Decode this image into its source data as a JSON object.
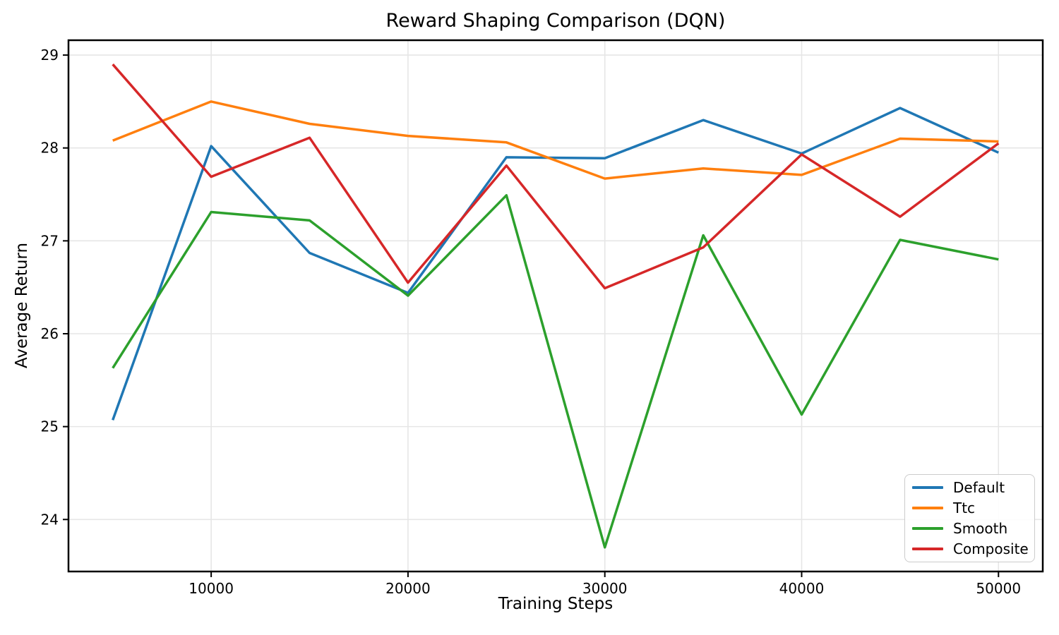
{
  "chart_data": {
    "type": "line",
    "title": "Reward Shaping Comparison (DQN)",
    "xlabel": "Training Steps",
    "ylabel": "Average Return",
    "x": [
      5000,
      10000,
      15000,
      20000,
      25000,
      30000,
      35000,
      40000,
      45000,
      50000
    ],
    "series": [
      {
        "name": "Default",
        "color": "#1f77b4",
        "values": [
          25.07,
          28.02,
          26.87,
          26.44,
          27.9,
          27.89,
          28.3,
          27.94,
          28.43,
          27.95
        ]
      },
      {
        "name": "Ttc",
        "color": "#ff7f0e",
        "values": [
          28.08,
          28.5,
          28.26,
          28.13,
          28.06,
          27.67,
          27.78,
          27.71,
          28.1,
          28.07
        ]
      },
      {
        "name": "Smooth",
        "color": "#2ca02c",
        "values": [
          25.63,
          27.31,
          27.22,
          26.41,
          27.49,
          23.7,
          27.06,
          25.13,
          27.01,
          26.8
        ]
      },
      {
        "name": "Composite",
        "color": "#d62728",
        "values": [
          28.9,
          27.69,
          28.11,
          26.55,
          27.81,
          26.49,
          26.93,
          27.93,
          27.26,
          28.05
        ]
      }
    ],
    "x_ticks": [
      10000,
      20000,
      30000,
      40000,
      50000
    ],
    "x_tick_labels": [
      "10000",
      "20000",
      "30000",
      "40000",
      "50000"
    ],
    "y_ticks": [
      24,
      25,
      26,
      27,
      28,
      29
    ],
    "y_tick_labels": [
      "24",
      "25",
      "26",
      "27",
      "28",
      "29"
    ],
    "xlim": [
      2750,
      52250
    ],
    "ylim": [
      23.44,
      29.16
    ],
    "grid": true,
    "legend_position": "lower right"
  }
}
